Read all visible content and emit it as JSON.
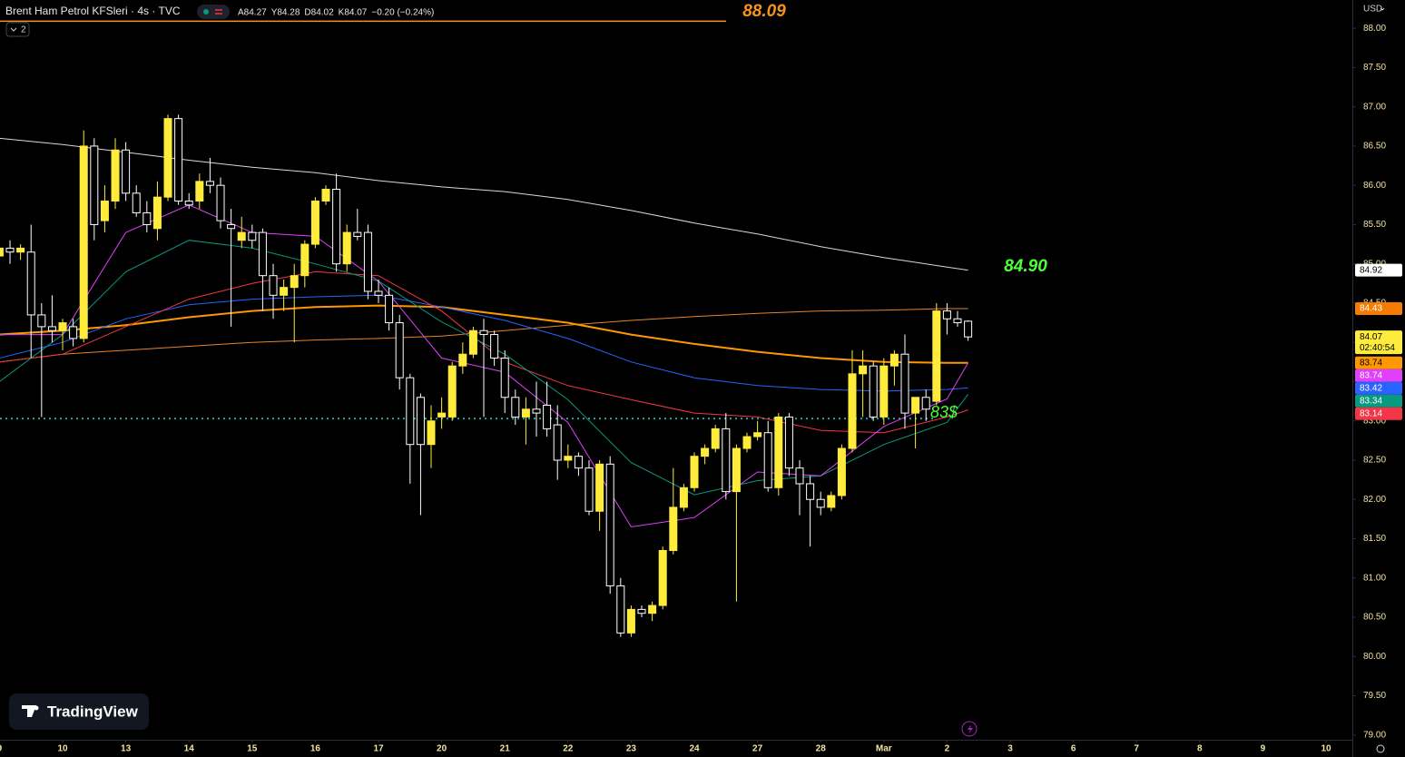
{
  "header": {
    "symbol": "Brent Ham Petrol KFSleri · 4s · TVC",
    "ohlc": [
      "A84.27",
      "Y84.28",
      "D84.02",
      "K84.07",
      "−0.20 (−0.24%)"
    ],
    "collapse": "2",
    "currency": "USD"
  },
  "branding": {
    "logo_text": "TradingView"
  },
  "chart_data": {
    "type": "candlestick",
    "up_color": "#ffeb3b",
    "down_color": "#ffffff",
    "grid": false,
    "xlim": [
      -5.95,
      122.5
    ],
    "ylim": [
      78.94,
      88.36
    ],
    "xticks": [
      {
        "value": -6,
        "label": "9"
      },
      {
        "value": 0,
        "label": "10"
      },
      {
        "value": 6,
        "label": "13"
      },
      {
        "value": 12,
        "label": "14"
      },
      {
        "value": 18,
        "label": "15"
      },
      {
        "value": 24,
        "label": "16"
      },
      {
        "value": 30,
        "label": "17"
      },
      {
        "value": 36,
        "label": "20"
      },
      {
        "value": 42,
        "label": "21"
      },
      {
        "value": 48,
        "label": "22"
      },
      {
        "value": 54,
        "label": "23"
      },
      {
        "value": 60,
        "label": "24"
      },
      {
        "value": 66,
        "label": "27"
      },
      {
        "value": 72,
        "label": "28"
      },
      {
        "value": 78,
        "label": "Mar"
      },
      {
        "value": 84,
        "label": "2"
      },
      {
        "value": 90,
        "label": "3"
      },
      {
        "value": 96,
        "label": "6"
      },
      {
        "value": 102,
        "label": "7"
      },
      {
        "value": 108,
        "label": "8"
      },
      {
        "value": 114,
        "label": "9"
      },
      {
        "value": 120,
        "label": "10"
      }
    ],
    "yticks": [
      {
        "value": 88,
        "label": "88.00"
      },
      {
        "value": 87.5,
        "label": "87.50"
      },
      {
        "value": 87,
        "label": "87.00"
      },
      {
        "value": 86.5,
        "label": "86.50"
      },
      {
        "value": 86,
        "label": "86.00"
      },
      {
        "value": 85.5,
        "label": "85.50"
      },
      {
        "value": 85,
        "label": "85.00"
      },
      {
        "value": 84.5,
        "label": "84.50"
      },
      {
        "value": 84,
        "label": "84.00"
      },
      {
        "value": 83.5,
        "label": "83.50"
      },
      {
        "value": 83,
        "label": "83.00"
      },
      {
        "value": 82.5,
        "label": "82.50"
      },
      {
        "value": 82,
        "label": "82.00"
      },
      {
        "value": 81.5,
        "label": "81.50"
      },
      {
        "value": 81,
        "label": "81.00"
      },
      {
        "value": 80.5,
        "label": "80.50"
      },
      {
        "value": 80,
        "label": "80.00"
      },
      {
        "value": 79.5,
        "label": "79.50"
      },
      {
        "value": 79,
        "label": "79.00"
      }
    ],
    "x": [
      -6,
      -5,
      -4,
      -3,
      -2,
      -1,
      0,
      1,
      2,
      3,
      4,
      5,
      6,
      7,
      8,
      9,
      10,
      11,
      12,
      13,
      14,
      15,
      16,
      17,
      18,
      19,
      20,
      21,
      22,
      23,
      24,
      25,
      26,
      27,
      28,
      29,
      30,
      31,
      32,
      33,
      34,
      35,
      36,
      37,
      38,
      39,
      40,
      41,
      42,
      43,
      44,
      45,
      46,
      47,
      48,
      49,
      50,
      51,
      52,
      53,
      54,
      55,
      56,
      57,
      58,
      59,
      60,
      61,
      62,
      63,
      64,
      65,
      66,
      67,
      68,
      69,
      70,
      71,
      72,
      73,
      74,
      75,
      76,
      77,
      78,
      79,
      80,
      81,
      82,
      83,
      84,
      85,
      86
    ],
    "open": [
      85.1,
      85.2,
      85.15,
      85.15,
      84.35,
      84.2,
      84.15,
      84.2,
      84.05,
      86.5,
      85.55,
      85.8,
      86.45,
      85.9,
      85.65,
      85.45,
      85.85,
      86.85,
      85.8,
      85.8,
      86.05,
      86.0,
      85.5,
      85.3,
      85.4,
      85.4,
      84.85,
      84.6,
      84.7,
      84.85,
      85.25,
      85.8,
      85.95,
      85.0,
      85.4,
      85.4,
      84.65,
      84.6,
      84.25,
      83.55,
      83.3,
      82.7,
      83.05,
      83.05,
      83.7,
      83.85,
      84.15,
      84.1,
      83.8,
      83.3,
      83.05,
      83.15,
      83.2,
      82.95,
      82.5,
      82.55,
      82.4,
      81.85,
      82.45,
      80.9,
      80.3,
      80.6,
      80.55,
      80.65,
      81.35,
      81.9,
      82.15,
      82.55,
      82.65,
      82.9,
      82.1,
      82.65,
      82.8,
      82.85,
      82.15,
      83.05,
      82.4,
      82.2,
      82.0,
      81.9,
      82.05,
      82.65,
      83.6,
      83.7,
      83.05,
      83.7,
      83.85,
      83.1,
      83.3,
      83.25,
      84.4,
      84.3,
      84.27
    ],
    "high": [
      85.25,
      85.3,
      85.25,
      85.5,
      84.5,
      84.6,
      84.3,
      84.3,
      86.7,
      86.6,
      86.0,
      86.6,
      86.55,
      86.0,
      85.8,
      86.05,
      86.9,
      86.9,
      85.9,
      86.15,
      86.35,
      86.1,
      85.7,
      85.6,
      85.5,
      85.45,
      85.0,
      84.8,
      85.0,
      85.3,
      85.85,
      86.0,
      86.15,
      85.5,
      85.7,
      85.5,
      84.8,
      84.7,
      84.35,
      83.6,
      83.35,
      83.2,
      83.3,
      83.75,
      84.0,
      84.2,
      84.3,
      84.15,
      83.9,
      83.4,
      83.3,
      83.5,
      83.5,
      83.2,
      82.7,
      82.6,
      82.5,
      82.5,
      82.55,
      81.0,
      80.65,
      80.65,
      80.7,
      81.4,
      82.4,
      82.2,
      82.6,
      82.7,
      82.95,
      83.1,
      82.7,
      82.85,
      83.0,
      83.0,
      83.1,
      83.1,
      82.5,
      82.3,
      82.1,
      82.1,
      82.7,
      83.9,
      83.9,
      83.75,
      83.8,
      83.9,
      84.1,
      83.3,
      83.4,
      84.5,
      84.5,
      84.4,
      84.28
    ],
    "low": [
      84.95,
      85.0,
      85.05,
      83.8,
      83.05,
      84.0,
      83.9,
      83.95,
      84.0,
      85.3,
      85.4,
      85.7,
      85.8,
      85.6,
      85.4,
      85.3,
      85.8,
      85.75,
      85.7,
      85.7,
      85.9,
      85.45,
      84.2,
      85.2,
      85.2,
      84.4,
      84.3,
      84.4,
      84.0,
      84.7,
      85.2,
      85.75,
      84.9,
      84.9,
      85.3,
      84.55,
      84.5,
      84.15,
      83.4,
      82.2,
      81.8,
      82.4,
      82.9,
      83.0,
      83.6,
      83.8,
      83.05,
      83.7,
      83.1,
      82.95,
      82.7,
      82.8,
      82.8,
      82.25,
      82.4,
      82.3,
      81.8,
      81.6,
      80.8,
      80.25,
      80.25,
      80.5,
      80.45,
      80.6,
      81.3,
      81.85,
      82.1,
      82.45,
      82.6,
      82.0,
      80.7,
      82.6,
      82.75,
      82.1,
      82.05,
      82.3,
      81.8,
      81.4,
      81.8,
      81.85,
      82.0,
      82.6,
      83.05,
      83.0,
      82.95,
      83.45,
      82.9,
      82.65,
      83.0,
      83.2,
      84.1,
      84.2,
      84.02
    ],
    "close": [
      85.2,
      85.15,
      85.2,
      84.35,
      84.2,
      84.15,
      84.25,
      84.05,
      86.5,
      85.5,
      85.8,
      86.45,
      85.9,
      85.65,
      85.5,
      85.85,
      86.85,
      85.8,
      85.75,
      86.05,
      86.0,
      85.55,
      85.45,
      85.4,
      85.3,
      84.85,
      84.6,
      84.7,
      84.85,
      85.25,
      85.8,
      85.95,
      85.0,
      85.4,
      85.35,
      84.65,
      84.6,
      84.25,
      83.55,
      82.7,
      82.7,
      83.0,
      83.1,
      83.7,
      83.85,
      84.15,
      84.1,
      83.8,
      83.3,
      83.05,
      83.15,
      83.1,
      82.9,
      82.5,
      82.55,
      82.4,
      81.85,
      82.45,
      80.9,
      80.3,
      80.6,
      80.55,
      80.65,
      81.35,
      81.9,
      82.15,
      82.55,
      82.65,
      82.9,
      82.1,
      82.65,
      82.8,
      82.85,
      82.15,
      83.05,
      82.4,
      82.2,
      82.0,
      81.9,
      82.05,
      82.65,
      83.6,
      83.7,
      83.05,
      83.7,
      83.85,
      83.1,
      83.3,
      83.15,
      84.4,
      84.3,
      84.25,
      84.07
    ],
    "overlay_x": [
      -6,
      0,
      6,
      12,
      18,
      24,
      30,
      36,
      42,
      48,
      54,
      60,
      66,
      72,
      78,
      84,
      86
    ],
    "overlays": [
      {
        "color": "#d9d9d9",
        "width": 1,
        "values": [
          86.6,
          86.52,
          86.42,
          86.32,
          86.23,
          86.16,
          86.06,
          85.98,
          85.92,
          85.82,
          85.68,
          85.52,
          85.38,
          85.22,
          85.08,
          84.96,
          84.92
        ]
      },
      {
        "color": "#e8832a",
        "width": 1,
        "values": [
          83.75,
          83.85,
          83.9,
          83.95,
          84.0,
          84.03,
          84.05,
          84.08,
          84.15,
          84.22,
          84.28,
          84.33,
          84.37,
          84.4,
          84.41,
          84.43,
          84.43
        ]
      },
      {
        "color": "#ff9800",
        "width": 2,
        "values": [
          84.1,
          84.15,
          84.22,
          84.32,
          84.4,
          84.45,
          84.47,
          84.45,
          84.35,
          84.25,
          84.1,
          83.98,
          83.88,
          83.8,
          83.75,
          83.74,
          83.74
        ]
      },
      {
        "color": "#2962ff",
        "width": 1,
        "values": [
          83.8,
          84.0,
          84.3,
          84.48,
          84.55,
          84.58,
          84.6,
          84.45,
          84.28,
          84.05,
          83.75,
          83.55,
          83.45,
          83.4,
          83.38,
          83.4,
          83.42
        ]
      },
      {
        "color": "#f23645",
        "width": 1,
        "values": [
          83.75,
          83.85,
          84.2,
          84.55,
          84.75,
          84.9,
          84.85,
          84.4,
          83.75,
          83.45,
          83.27,
          83.1,
          83.05,
          82.88,
          82.85,
          83.05,
          83.14
        ]
      },
      {
        "color": "#089981",
        "width": 1,
        "values": [
          83.5,
          84.1,
          84.9,
          85.3,
          85.2,
          85.0,
          84.78,
          84.26,
          83.85,
          83.27,
          82.47,
          82.06,
          82.24,
          82.3,
          82.7,
          82.98,
          83.34
        ]
      },
      {
        "color": "#e040fb",
        "width": 1,
        "values": [
          84.1,
          84.1,
          85.4,
          85.75,
          85.4,
          85.35,
          84.78,
          83.8,
          83.62,
          82.98,
          81.65,
          81.77,
          82.35,
          82.3,
          82.93,
          83.28,
          83.74
        ]
      }
    ],
    "hlines": [
      {
        "value": 88.09,
        "color": "#f7931a",
        "style": "solid"
      },
      {
        "value": 83.03,
        "color": "#26a69a",
        "style": "dotted"
      }
    ],
    "annotations": [
      {
        "text": "84.90",
        "color": "#4cff3a"
      },
      {
        "text": "83$",
        "color": "#4cff3a"
      }
    ],
    "price_tags": [
      {
        "value": 84.92,
        "color": "#ffffff"
      },
      {
        "value": 84.43,
        "color": "#f57c00"
      },
      {
        "value": 84.07,
        "color": "#ffeb3b",
        "countdown": "02:40:54"
      },
      {
        "value": 83.74,
        "color": "#ff9800"
      },
      {
        "value": 83.74,
        "color": "#e040fb"
      },
      {
        "value": 83.42,
        "color": "#2962ff"
      },
      {
        "value": 83.34,
        "color": "#089981"
      },
      {
        "value": 83.14,
        "color": "#f23645"
      }
    ]
  }
}
